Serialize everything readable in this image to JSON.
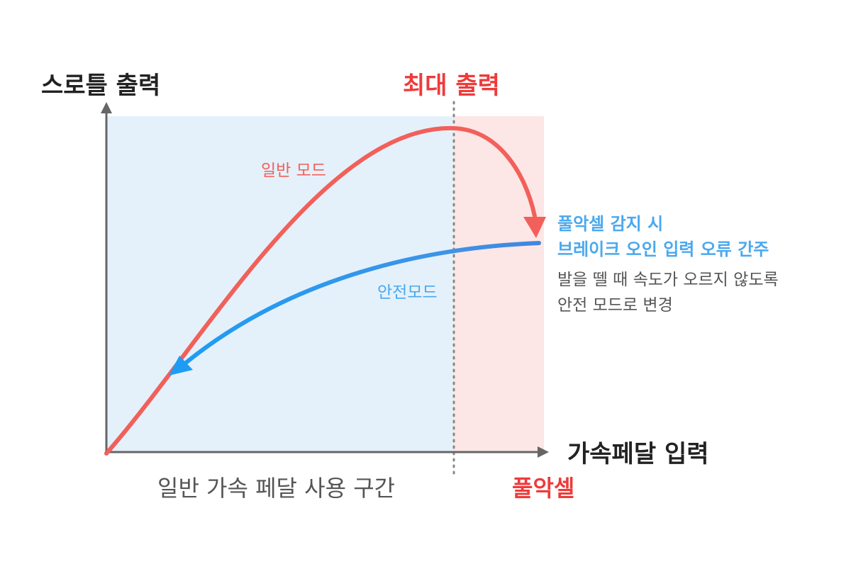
{
  "title_y_axis": "스로틀 출력",
  "title_x_axis": "가속페달 입력",
  "max_output_label": "최대 출력",
  "zones": {
    "normal": "일반 가속 페달 사용 구간",
    "misapplication": "풀악셀"
  },
  "curves": {
    "normal_mode": "일반 모드",
    "safe_mode": "안전모드"
  },
  "annotation": {
    "line1": "풀악셀 감지 시",
    "line2": "브레이크 오인 입력 오류 간주",
    "line3": "발을 뗄 때 속도가 오르지 않도록",
    "line4": "안전 모드로 변경"
  },
  "colors": {
    "normal_zone_fill": "#e4f1fb",
    "misapplication_zone_fill": "#fde6e6",
    "normal_curve": "#f2605a",
    "safe_curve": "#2f9af0",
    "highlight_red": "#ee3b3b",
    "highlight_blue": "#4aa8ee",
    "axis": "#666666",
    "text_dark": "#222222",
    "text_gray": "#555555"
  }
}
